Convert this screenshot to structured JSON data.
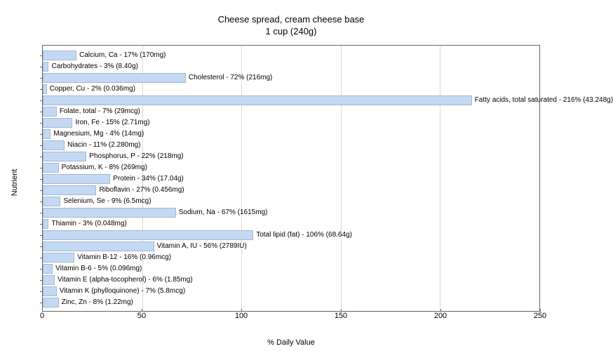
{
  "chart": {
    "type": "bar-horizontal",
    "title_line1": "Cheese spread, cream cheese base",
    "title_line2": "1 cup (240g)",
    "title_fontsize": 13,
    "xlabel": "% Daily Value",
    "ylabel": "Nutrient",
    "label_fontsize": 11,
    "xlim": [
      0,
      250
    ],
    "xticks": [
      0,
      50,
      100,
      150,
      200,
      250
    ],
    "background_color": "#ffffff",
    "grid_color": "#d9d9d9",
    "bar_color": "#c2d8f3",
    "bar_border_color": "rgba(0,0,0,0.15)",
    "text_color": "#000000",
    "plot_border_color": "#666666",
    "bar_label_fontsize": 10,
    "tick_fontsize": 11,
    "nutrients": [
      {
        "name": "Calcium, Ca",
        "percent": 17,
        "amount": "170mg",
        "label": "Calcium, Ca - 17% (170mg)"
      },
      {
        "name": "Carbohydrates",
        "percent": 3,
        "amount": "8.40g",
        "label": "Carbohydrates - 3% (8.40g)"
      },
      {
        "name": "Cholesterol",
        "percent": 72,
        "amount": "216mg",
        "label": "Cholesterol - 72% (216mg)"
      },
      {
        "name": "Copper, Cu",
        "percent": 2,
        "amount": "0.036mg",
        "label": "Copper, Cu - 2% (0.036mg)"
      },
      {
        "name": "Fatty acids, total saturated",
        "percent": 216,
        "amount": "43.248g",
        "label": "Fatty acids, total saturated - 216% (43.248g)"
      },
      {
        "name": "Folate, total",
        "percent": 7,
        "amount": "29mcg",
        "label": "Folate, total - 7% (29mcg)"
      },
      {
        "name": "Iron, Fe",
        "percent": 15,
        "amount": "2.71mg",
        "label": "Iron, Fe - 15% (2.71mg)"
      },
      {
        "name": "Magnesium, Mg",
        "percent": 4,
        "amount": "14mg",
        "label": "Magnesium, Mg - 4% (14mg)"
      },
      {
        "name": "Niacin",
        "percent": 11,
        "amount": "2.280mg",
        "label": "Niacin - 11% (2.280mg)"
      },
      {
        "name": "Phosphorus, P",
        "percent": 22,
        "amount": "218mg",
        "label": "Phosphorus, P - 22% (218mg)"
      },
      {
        "name": "Potassium, K",
        "percent": 8,
        "amount": "269mg",
        "label": "Potassium, K - 8% (269mg)"
      },
      {
        "name": "Protein",
        "percent": 34,
        "amount": "17.04g",
        "label": "Protein - 34% (17.04g)"
      },
      {
        "name": "Riboflavin",
        "percent": 27,
        "amount": "0.456mg",
        "label": "Riboflavin - 27% (0.456mg)"
      },
      {
        "name": "Selenium, Se",
        "percent": 9,
        "amount": "6.5mcg",
        "label": "Selenium, Se - 9% (6.5mcg)"
      },
      {
        "name": "Sodium, Na",
        "percent": 67,
        "amount": "1615mg",
        "label": "Sodium, Na - 67% (1615mg)"
      },
      {
        "name": "Thiamin",
        "percent": 3,
        "amount": "0.048mg",
        "label": "Thiamin - 3% (0.048mg)"
      },
      {
        "name": "Total lipid (fat)",
        "percent": 106,
        "amount": "68.64g",
        "label": "Total lipid (fat) - 106% (68.64g)"
      },
      {
        "name": "Vitamin A, IU",
        "percent": 56,
        "amount": "2789IU",
        "label": "Vitamin A, IU - 56% (2789IU)"
      },
      {
        "name": "Vitamin B-12",
        "percent": 16,
        "amount": "0.96mcg",
        "label": "Vitamin B-12 - 16% (0.96mcg)"
      },
      {
        "name": "Vitamin B-6",
        "percent": 5,
        "amount": "0.096mg",
        "label": "Vitamin B-6 - 5% (0.096mg)"
      },
      {
        "name": "Vitamin E (alpha-tocopherol)",
        "percent": 6,
        "amount": "1.85mg",
        "label": "Vitamin E (alpha-tocopherol) - 6% (1.85mg)"
      },
      {
        "name": "Vitamin K (phylloquinone)",
        "percent": 7,
        "amount": "5.8mcg",
        "label": "Vitamin K (phylloquinone) - 7% (5.8mcg)"
      },
      {
        "name": "Zinc, Zn",
        "percent": 8,
        "amount": "1.22mg",
        "label": "Zinc, Zn - 8% (1.22mg)"
      }
    ]
  }
}
